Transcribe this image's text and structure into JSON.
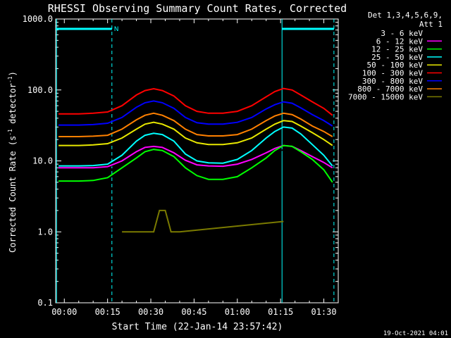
{
  "chart_data": {
    "type": "line",
    "title": "RHESSI Observing Summary Count Rates, Corrected",
    "xlabel": "Start Time (22-Jan-14 23:57:42)",
    "ylabel_main": "Corrected Count Rate (s",
    "ylabel_sup1": "-1",
    "ylabel_mid": " detector",
    "ylabel_sup2": "-1",
    "ylabel_end": ")",
    "yscale": "log",
    "ylim": [
      0.1,
      1000.0
    ],
    "xlim_minutes": [
      -3,
      95
    ],
    "x_tick_labels": [
      "00:00",
      "00:15",
      "00:30",
      "00:45",
      "01:00",
      "01:15",
      "01:30"
    ],
    "x_tick_minutes": [
      0,
      15,
      30,
      45,
      60,
      75,
      90
    ],
    "y_tick_labels": [
      "0.1",
      "1.0",
      "10.0",
      "100.0",
      "1000.0"
    ],
    "y_tick_values": [
      0.1,
      1,
      10,
      100,
      1000
    ],
    "legend_title_1": "Det 1,3,4,5,6,9,",
    "legend_title_2": "Att 1",
    "legend_placement": "right",
    "footer_date": "19-Oct-2021 04:01",
    "marker_label": "N",
    "night_bars": [
      {
        "start": -3,
        "end": 16.5,
        "label_shown": true
      },
      {
        "start": 75.5,
        "end": 93.5,
        "label_shown": false
      }
    ],
    "boundary_lines_dashed": [
      16.5,
      93.5
    ],
    "boundary_lines_solid": [
      -2.7,
      75.5
    ],
    "series": [
      {
        "name": "3 - 6 keV",
        "color": "#000000",
        "x": [
          -2,
          5,
          10,
          15,
          20,
          25,
          28,
          31,
          34,
          38,
          42,
          46,
          50,
          55,
          60,
          65,
          70,
          73,
          76,
          79,
          82,
          86,
          90,
          93
        ],
        "y": [
          8,
          8,
          8,
          8.2,
          9.5,
          12,
          13.2,
          14,
          13.5,
          12,
          9.5,
          8.3,
          8,
          8,
          8.3,
          9.5,
          11.8,
          13.5,
          14.3,
          13.8,
          12,
          10.5,
          9,
          7.8
        ]
      },
      {
        "name": "6 - 12 keV",
        "color": "#ff00ff",
        "x": [
          -2,
          5,
          10,
          15,
          20,
          25,
          28,
          31,
          34,
          38,
          42,
          46,
          50,
          55,
          60,
          65,
          70,
          73,
          76,
          79,
          82,
          86,
          90,
          93
        ],
        "y": [
          8,
          8,
          8,
          8.3,
          10,
          13.5,
          15.5,
          16,
          15.5,
          13,
          10.2,
          8.8,
          8.5,
          8.4,
          9,
          10.5,
          13,
          15,
          16.5,
          16,
          14,
          11.5,
          9.5,
          8
        ]
      },
      {
        "name": "12 - 25 keV",
        "color": "#00ff00",
        "x": [
          -2,
          5,
          10,
          15,
          20,
          25,
          28,
          31,
          34,
          38,
          42,
          46,
          50,
          55,
          60,
          65,
          70,
          73,
          76,
          79,
          82,
          86,
          90,
          93
        ],
        "y": [
          5.2,
          5.2,
          5.3,
          5.8,
          8,
          11,
          13.5,
          14.5,
          14,
          11.5,
          8,
          6.2,
          5.5,
          5.5,
          6,
          8,
          11,
          14,
          16.5,
          16,
          13.5,
          10.5,
          7.5,
          5
        ]
      },
      {
        "name": "25 - 50 keV",
        "color": "#00ffff",
        "x": [
          -2,
          5,
          10,
          15,
          20,
          25,
          28,
          31,
          34,
          38,
          42,
          46,
          50,
          55,
          60,
          65,
          70,
          73,
          76,
          79,
          82,
          86,
          90,
          93
        ],
        "y": [
          8.5,
          8.5,
          8.6,
          9,
          12,
          19,
          23,
          24.5,
          23.5,
          19,
          12.5,
          10,
          9.4,
          9.3,
          10.5,
          14,
          21,
          26,
          30,
          29,
          24,
          17,
          12,
          8.5
        ]
      },
      {
        "name": "50 - 100 keV",
        "color": "#e8e800",
        "x": [
          -2,
          5,
          10,
          15,
          20,
          25,
          28,
          31,
          34,
          38,
          42,
          46,
          50,
          55,
          60,
          65,
          70,
          73,
          76,
          79,
          82,
          86,
          90,
          93
        ],
        "y": [
          16.5,
          16.5,
          16.8,
          17.5,
          21,
          28,
          33,
          35,
          33,
          28,
          21,
          18,
          17,
          17,
          18,
          21,
          28,
          33,
          37,
          36,
          31,
          25,
          20,
          16.5
        ]
      },
      {
        "name": "100 - 300 keV",
        "color": "#ff0000",
        "x": [
          -2,
          5,
          10,
          15,
          20,
          25,
          28,
          31,
          34,
          38,
          42,
          46,
          50,
          55,
          60,
          65,
          70,
          73,
          76,
          79,
          82,
          86,
          90,
          93
        ],
        "y": [
          46,
          46,
          47,
          49,
          60,
          85,
          98,
          104,
          98,
          82,
          60,
          50,
          47,
          47,
          50,
          60,
          80,
          95,
          105,
          100,
          85,
          68,
          55,
          44
        ]
      },
      {
        "name": "300 - 800 keV",
        "color": "#0000ff",
        "x": [
          -2,
          5,
          10,
          15,
          20,
          25,
          28,
          31,
          34,
          38,
          42,
          46,
          50,
          55,
          60,
          65,
          70,
          73,
          76,
          79,
          82,
          86,
          90,
          93
        ],
        "y": [
          32,
          32,
          32.5,
          34,
          41,
          57,
          66,
          70,
          66,
          55,
          41,
          34.5,
          33,
          33,
          35,
          41,
          54,
          62,
          68,
          65,
          56,
          45,
          37,
          31
        ]
      },
      {
        "name": "800 - 7000 keV",
        "color": "#ff8000",
        "x": [
          -2,
          5,
          10,
          15,
          20,
          25,
          28,
          31,
          34,
          38,
          42,
          46,
          50,
          55,
          60,
          65,
          70,
          73,
          76,
          79,
          82,
          86,
          90,
          93
        ],
        "y": [
          22,
          22,
          22.3,
          23,
          28,
          38,
          44,
          47,
          44,
          37,
          28,
          23.5,
          22.5,
          22.5,
          23.5,
          28,
          37,
          43,
          47,
          45,
          39,
          31,
          26,
          22
        ]
      },
      {
        "name": "7000 - 15000 keV",
        "color": "#7a7a00",
        "x": [
          20,
          31,
          33,
          34,
          35,
          37,
          38,
          40,
          76
        ],
        "y": [
          1.0,
          1.0,
          2.0,
          2.0,
          2.0,
          1.0,
          1.0,
          1.0,
          1.4
        ]
      }
    ]
  }
}
